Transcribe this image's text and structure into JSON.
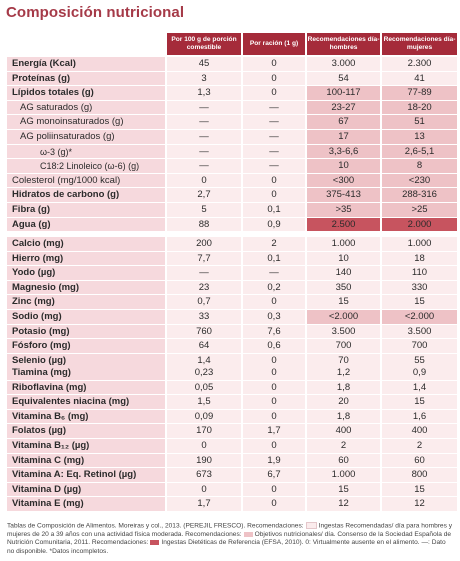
{
  "title": "Composición nutricional",
  "headers": [
    "Por 100 g de porción comestible",
    "Por ración (1 g)",
    "Recomendaciones día-hombres",
    "Recomendaciones día-mujeres"
  ],
  "colors": {
    "header": "#a52b3a",
    "title": "#a53a48",
    "highlight_light": "#eec2c6",
    "highlight_dark": "#c7545f"
  },
  "groups": [
    {
      "rows": [
        {
          "name": "Energía (Kcal)",
          "bold": true,
          "indent": 0,
          "v": [
            "45",
            "0",
            "3.000",
            "2.300"
          ],
          "hl": ""
        },
        {
          "name": "Proteínas (g)",
          "bold": true,
          "indent": 0,
          "v": [
            "3",
            "0",
            "54",
            "41"
          ],
          "hl": ""
        },
        {
          "name": "Lípidos totales (g)",
          "bold": true,
          "indent": 0,
          "v": [
            "1,3",
            "0",
            "100-117",
            "77-89"
          ],
          "hl": "light"
        },
        {
          "name": "AG saturados (g)",
          "bold": false,
          "indent": 1,
          "v": [
            "—",
            "—",
            "23-27",
            "18-20"
          ],
          "hl": "light"
        },
        {
          "name": "AG monoinsaturados (g)",
          "bold": false,
          "indent": 1,
          "v": [
            "—",
            "—",
            "67",
            "51"
          ],
          "hl": "light"
        },
        {
          "name": "AG poliinsaturados (g)",
          "bold": false,
          "indent": 1,
          "v": [
            "—",
            "—",
            "17",
            "13"
          ],
          "hl": "light"
        },
        {
          "name": "ω-3 (g)*",
          "bold": false,
          "indent": 2,
          "v": [
            "—",
            "—",
            "3,3-6,6",
            "2,6-5,1"
          ],
          "hl": "light"
        },
        {
          "name": "C18:2 Linoleico (ω-6) (g)",
          "bold": false,
          "indent": 2,
          "v": [
            "—",
            "—",
            "10",
            "8"
          ],
          "hl": "light"
        },
        {
          "name": "Colesterol (mg/1000 kcal)",
          "bold": false,
          "indent": 0,
          "v": [
            "0",
            "0",
            "<300",
            "<230"
          ],
          "hl": "light"
        },
        {
          "name": "Hidratos de carbono (g)",
          "bold": true,
          "indent": 0,
          "v": [
            "2,7",
            "0",
            "375-413",
            "288-316"
          ],
          "hl": "light"
        },
        {
          "name": "Fibra (g)",
          "bold": true,
          "indent": 0,
          "v": [
            "5",
            "0,1",
            ">35",
            ">25"
          ],
          "hl": "light"
        },
        {
          "name": "Agua (g)",
          "bold": true,
          "indent": 0,
          "v": [
            "88",
            "0,9",
            "2.500",
            "2.000"
          ],
          "hl": "dark"
        }
      ]
    },
    {
      "rows": [
        {
          "name": "Calcio (mg)",
          "bold": true,
          "indent": 0,
          "v": [
            "200",
            "2",
            "1.000",
            "1.000"
          ],
          "hl": ""
        },
        {
          "name": "Hierro (mg)",
          "bold": true,
          "indent": 0,
          "v": [
            "7,7",
            "0,1",
            "10",
            "18"
          ],
          "hl": ""
        },
        {
          "name": "Yodo (µg)",
          "bold": true,
          "indent": 0,
          "v": [
            "—",
            "—",
            "140",
            "110"
          ],
          "hl": ""
        },
        {
          "name": "Magnesio (mg)",
          "bold": true,
          "indent": 0,
          "v": [
            "23",
            "0,2",
            "350",
            "330"
          ],
          "hl": ""
        },
        {
          "name": "Zinc (mg)",
          "bold": true,
          "indent": 0,
          "v": [
            "0,7",
            "0",
            "15",
            "15"
          ],
          "hl": ""
        },
        {
          "name": "Sodio (mg)",
          "bold": true,
          "indent": 0,
          "v": [
            "33",
            "0,3",
            "<2.000",
            "<2.000"
          ],
          "hl": "light"
        },
        {
          "name": "Potasio (mg)",
          "bold": true,
          "indent": 0,
          "v": [
            "760",
            "7,6",
            "3.500",
            "3.500"
          ],
          "hl": ""
        },
        {
          "name": "Fósforo (mg)",
          "bold": true,
          "indent": 0,
          "v": [
            "64",
            "0,6",
            "700",
            "700"
          ],
          "hl": ""
        },
        {
          "name": "Selenio (µg)",
          "bold": true,
          "indent": 0,
          "v": [
            "1,4",
            "0",
            "70",
            "55"
          ],
          "hl": ""
        }
      ]
    },
    {
      "rows": [
        {
          "name": "Tiamina (mg)",
          "bold": true,
          "indent": 0,
          "v": [
            "0,23",
            "0",
            "1,2",
            "0,9"
          ],
          "hl": ""
        },
        {
          "name": "Riboflavina (mg)",
          "bold": true,
          "indent": 0,
          "v": [
            "0,05",
            "0",
            "1,8",
            "1,4"
          ],
          "hl": ""
        },
        {
          "name": "Equivalentes niacina (mg)",
          "bold": true,
          "indent": 0,
          "v": [
            "1,5",
            "0",
            "20",
            "15"
          ],
          "hl": ""
        },
        {
          "name": "Vitamina B₆ (mg)",
          "bold": true,
          "indent": 0,
          "v": [
            "0,09",
            "0",
            "1,8",
            "1,6"
          ],
          "hl": ""
        },
        {
          "name": "Folatos (µg)",
          "bold": true,
          "indent": 0,
          "v": [
            "170",
            "1,7",
            "400",
            "400"
          ],
          "hl": ""
        },
        {
          "name": "Vitamina B₁₂ (µg)",
          "bold": true,
          "indent": 0,
          "v": [
            "0",
            "0",
            "2",
            "2"
          ],
          "hl": ""
        },
        {
          "name": "Vitamina C (mg)",
          "bold": true,
          "indent": 0,
          "v": [
            "190",
            "1,9",
            "60",
            "60"
          ],
          "hl": ""
        },
        {
          "name": "Vitamina A: Eq. Retinol (µg)",
          "bold": true,
          "indent": 0,
          "v": [
            "673",
            "6,7",
            "1.000",
            "800"
          ],
          "hl": ""
        },
        {
          "name": "Vitamina D (µg)",
          "bold": true,
          "indent": 0,
          "v": [
            "0",
            "0",
            "15",
            "15"
          ],
          "hl": ""
        },
        {
          "name": "Vitamina E (mg)",
          "bold": true,
          "indent": 0,
          "v": [
            "1,7",
            "0",
            "12",
            "12"
          ],
          "hl": ""
        }
      ]
    }
  ],
  "footnote": {
    "part1": "Tablas de Composición de Alimentos. Moreiras y col., 2013. (PEREJIL FRESCO). Recomendaciones:",
    "part2": "Ingestas Recomendadas/ día para hombres y mujeres de 20 a 39 años con una actividad física moderada. Recomendaciones:",
    "part3": "Objetivos nutricionales/ día. Consenso de la Sociedad Española de Nutrición Comunitaria, 2011. Recomendaciones:",
    "part4": "Ingestas Dietéticas de Referencia (EFSA, 2010). 0: Virtualmente ausente en el alimento. —: Dato no disponible. *Datos incompletos."
  }
}
